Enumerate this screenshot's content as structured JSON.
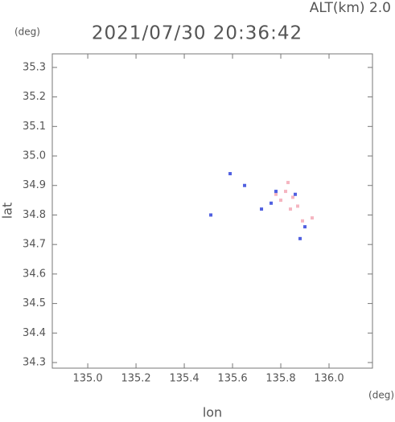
{
  "chart_data": {
    "type": "scatter",
    "altitude_label": "ALT(km) 2.0",
    "title": "2021/07/30 20:36:42",
    "y_unit": "(deg)",
    "x_unit": "(deg)",
    "y_label": "lat",
    "x_label": "lon",
    "xlim": [
      134.853,
      136.18
    ],
    "ylim": [
      34.281,
      35.346
    ],
    "xticks": [
      {
        "value": 135,
        "label": "135.0"
      },
      135.2,
      135.4,
      135.6,
      135.8,
      {
        "value": 136,
        "label": "136.0"
      }
    ],
    "yticks": [
      34.3,
      34.4,
      34.5,
      34.6,
      34.7,
      34.8,
      34.9,
      {
        "value": 35,
        "label": "35.0"
      },
      35.1,
      35.2,
      35.3
    ],
    "series": [
      {
        "color": "#f5b5c0",
        "x": [
          135.82,
          135.85,
          135.8,
          135.83,
          135.87,
          135.93,
          135.89,
          135.78,
          135.84
        ],
        "y": [
          34.88,
          34.86,
          34.85,
          34.91,
          34.83,
          34.79,
          34.78,
          34.87,
          34.82
        ]
      },
      {
        "color": "#5060e0",
        "x": [
          135.59,
          135.51,
          135.65,
          135.72,
          135.76,
          135.88,
          135.86,
          135.78,
          135.9
        ],
        "y": [
          34.94,
          34.8,
          34.9,
          34.82,
          34.84,
          34.72,
          34.87,
          34.88,
          34.76
        ]
      }
    ]
  }
}
